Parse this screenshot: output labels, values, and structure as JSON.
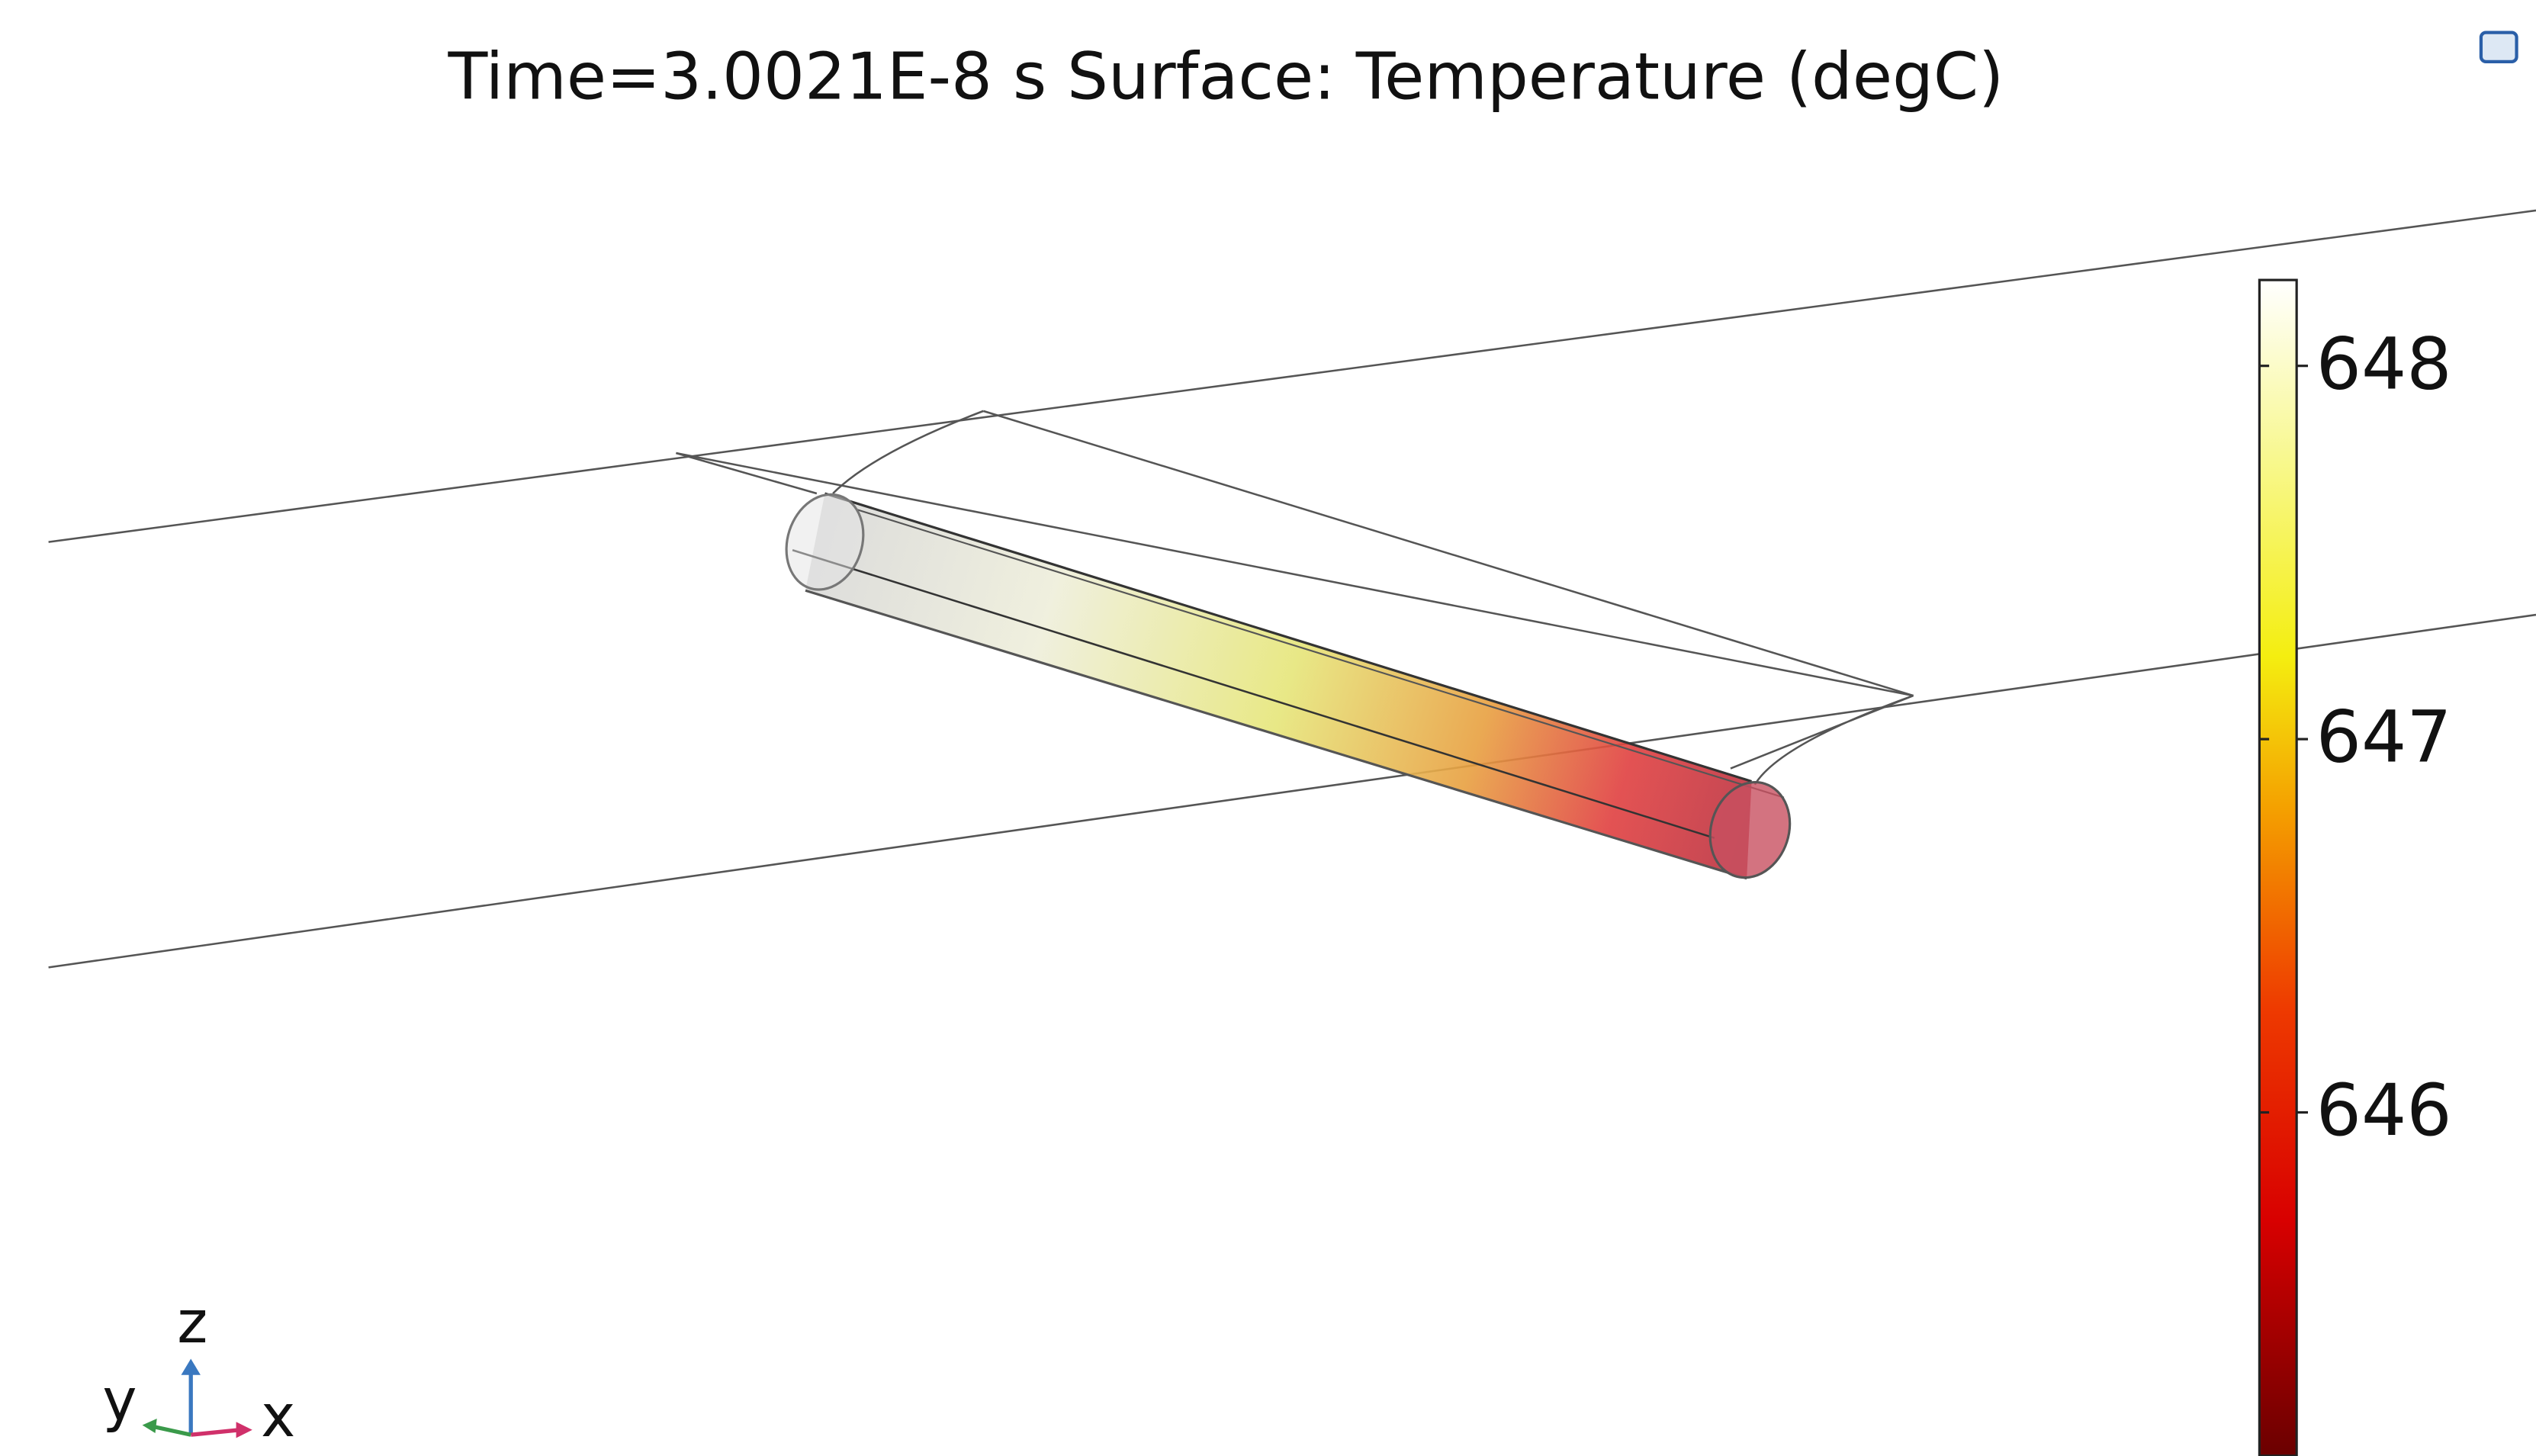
{
  "title": "Time=3.0021E-8 s   Surface: Temperature (degC)",
  "colorbar": {
    "range": [
      645.08,
      648.23
    ],
    "ticks": [
      646,
      647,
      648
    ]
  },
  "axes_triad": {
    "z": "z",
    "y": "y",
    "x": "x"
  }
}
